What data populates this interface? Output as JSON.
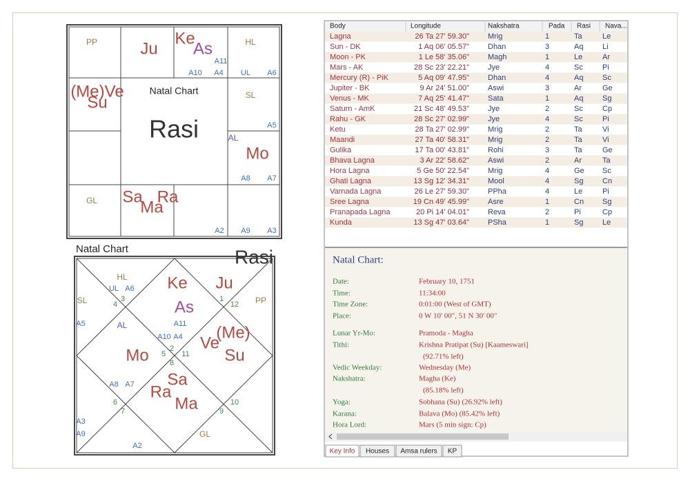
{
  "south": {
    "title": "Natal Chart",
    "name": "Rasi",
    "labels": [
      "PP",
      "Ju",
      "Ke",
      "As",
      "A11",
      "A10",
      "A4",
      "HL",
      "UL",
      "A6",
      "(Me)Ve",
      "Su",
      "SL",
      "A5",
      "AL",
      "Mo",
      "A8",
      "A7",
      "GL",
      "Sa",
      "Ma",
      "Ra",
      "A2",
      "A9",
      "A3"
    ]
  },
  "north": {
    "title": "Natal Chart",
    "name": "Rasi",
    "labels": [
      "HL",
      "UL",
      "A6",
      "4",
      "3",
      "SL",
      "A5",
      "AL",
      "Ke",
      "As",
      "A11",
      "A10",
      "A4",
      "2",
      "5",
      "11",
      "8",
      "Mo",
      "Ju",
      "1",
      "12",
      "PP",
      "Ve",
      "(Me)",
      "Su",
      "A8",
      "A7",
      "6",
      "7",
      "Sa",
      "Ra",
      "Ma",
      "10",
      "9",
      "A3",
      "A9",
      "GL",
      "A2"
    ]
  },
  "table": {
    "columns": [
      "Body",
      "Longitude",
      "Nakshatra",
      "Pada",
      "Rasi",
      "Nava..."
    ],
    "rows": [
      [
        "Lagna",
        "26 Ta 27' 59.30\"",
        "Mrig",
        1,
        "Ta",
        "Le"
      ],
      [
        "Sun - DK",
        "1 Aq 06' 05.57\"",
        "Dhan",
        3,
        "Aq",
        "Li"
      ],
      [
        "Moon - PK",
        "1 Le 58' 35.06\"",
        "Magh",
        1,
        "Le",
        "Ar"
      ],
      [
        "Mars - AK",
        "28 Sc 23' 22.21\"",
        "Jye",
        4,
        "Sc",
        "Pi"
      ],
      [
        "Mercury (R) - PiK",
        "5 Aq 09' 47.95\"",
        "Dhan",
        4,
        "Aq",
        "Sc"
      ],
      [
        "Jupiter - BK",
        "9 Ar 24' 51.00\"",
        "Aswi",
        3,
        "Ar",
        "Ge"
      ],
      [
        "Venus - MK",
        "7 Aq 25' 41.47\"",
        "Sata",
        1,
        "Aq",
        "Sg"
      ],
      [
        "Saturn - AmK",
        "21 Sc 48' 49.53\"",
        "Jye",
        2,
        "Sc",
        "Cp"
      ],
      [
        "Rahu - GK",
        "28 Sc 27' 02.99\"",
        "Jye",
        4,
        "Sc",
        "Pi"
      ],
      [
        "Ketu",
        "28 Ta 27' 02.99\"",
        "Mrig",
        2,
        "Ta",
        "Vi"
      ],
      [
        "Maandi",
        "27 Ta 40' 58.31\"",
        "Mrig",
        2,
        "Ta",
        "Vi"
      ],
      [
        "Gulika",
        "17 Ta 00' 43.81\"",
        "Rohi",
        3,
        "Ta",
        "Ge"
      ],
      [
        "Bhava Lagna",
        "3 Ar 22' 58.62\"",
        "Aswi",
        2,
        "Ar",
        "Ta"
      ],
      [
        "Hora Lagna",
        "5 Ge 50' 22.54\"",
        "Mrig",
        4,
        "Ge",
        "Sc"
      ],
      [
        "Ghati Lagna",
        "13 Sg 12' 34.31\"",
        "Mool",
        4,
        "Sg",
        "Cn"
      ],
      [
        "Varnada Lagna",
        "26 Le 27' 59.30\"",
        "PPha",
        4,
        "Le",
        "Pi"
      ],
      [
        "Sree Lagna",
        "19 Cn 49' 45.99\"",
        "Asre",
        1,
        "Cn",
        "Sg"
      ],
      [
        "Pranapada Lagna",
        "20 Pi 14' 04.01\"",
        "Reva",
        2,
        "Pi",
        "Cp"
      ],
      [
        "Kunda",
        "13 Sg 47' 03.64\"",
        "PSha",
        1,
        "Sg",
        "Le"
      ]
    ]
  },
  "info": {
    "title": "Natal Chart:",
    "items": [
      {
        "label": "Date:",
        "lines": [
          "February 10, 1751"
        ]
      },
      {
        "label": "Time:",
        "lines": [
          "11:34:00"
        ]
      },
      {
        "label": "Time Zone:",
        "lines": [
          "0:01:00 (West of GMT)"
        ]
      },
      {
        "label": "Place:",
        "lines": [
          "0 W 10' 00\", 51 N 30' 00\""
        ]
      },
      {
        "label": "Lunar Yr-Mo:",
        "lines": [
          "Pramoda - Magha"
        ]
      },
      {
        "label": "Tithi:",
        "lines": [
          "Krishna Pratipat (Su) [Kaameswari]",
          "(92.71% left)"
        ]
      },
      {
        "label": "Vedic Weekday:",
        "lines": [
          "Wednesday (Me)"
        ]
      },
      {
        "label": "Nakshatra:",
        "lines": [
          "Magha (Ke)",
          "(85.18% left)"
        ]
      },
      {
        "label": "Yoga:",
        "lines": [
          "Sobhana (Su) (26.92% left)"
        ]
      },
      {
        "label": "Karana:",
        "lines": [
          "Balava (Mo) (85.42% left)"
        ]
      },
      {
        "label": "Hora Lord:",
        "lines": [
          "Mars (5 min sign: Cp)"
        ]
      }
    ]
  },
  "tabs": [
    "Key Info",
    "Houses",
    "Amsa rulers",
    "KP"
  ]
}
